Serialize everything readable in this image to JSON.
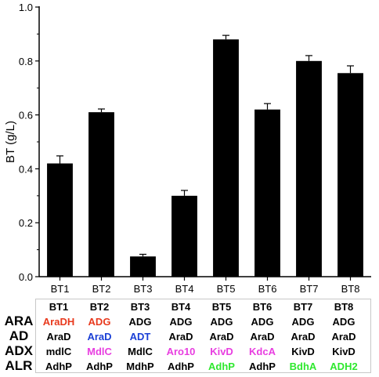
{
  "chart_data": {
    "type": "bar",
    "title": "",
    "xlabel": "",
    "ylabel": "BT (g/L)",
    "ylim": [
      0.0,
      1.0
    ],
    "yticks": [
      "0.0",
      "0.2",
      "0.4",
      "0.6",
      "0.8",
      "1.0"
    ],
    "categories": [
      "BT1",
      "BT2",
      "BT3",
      "BT4",
      "BT5",
      "BT6",
      "BT7",
      "BT8"
    ],
    "values": [
      0.42,
      0.61,
      0.075,
      0.3,
      0.88,
      0.62,
      0.8,
      0.755
    ],
    "errors": [
      0.028,
      0.012,
      0.008,
      0.02,
      0.015,
      0.022,
      0.02,
      0.027
    ],
    "bar_color": "#000000",
    "grid": false
  },
  "gene_table": {
    "row_labels": [
      "ARA",
      "AD",
      "ADX",
      "ALR"
    ],
    "headers": [
      "BT1",
      "BT2",
      "BT3",
      "BT4",
      "BT5",
      "BT6",
      "BT7",
      "BT8"
    ],
    "rows": [
      [
        {
          "text": "AraDH",
          "color": "#e8391d"
        },
        {
          "text": "ADG",
          "color": "#e8391d"
        },
        {
          "text": "ADG",
          "color": "#000000"
        },
        {
          "text": "ADG",
          "color": "#000000"
        },
        {
          "text": "ADG",
          "color": "#000000"
        },
        {
          "text": "ADG",
          "color": "#000000"
        },
        {
          "text": "ADG",
          "color": "#000000"
        },
        {
          "text": "ADG",
          "color": "#000000"
        }
      ],
      [
        {
          "text": "AraD",
          "color": "#000000"
        },
        {
          "text": "AraD",
          "color": "#1a3fd6"
        },
        {
          "text": "ADT",
          "color": "#1a3fd6"
        },
        {
          "text": "AraD",
          "color": "#000000"
        },
        {
          "text": "AraD",
          "color": "#000000"
        },
        {
          "text": "AraD",
          "color": "#000000"
        },
        {
          "text": "AraD",
          "color": "#000000"
        },
        {
          "text": "AraD",
          "color": "#000000"
        }
      ],
      [
        {
          "text": "mdlC",
          "color": "#000000"
        },
        {
          "text": "MdlC",
          "color": "#e83ee0"
        },
        {
          "text": "MdlC",
          "color": "#000000"
        },
        {
          "text": "Aro10",
          "color": "#e83ee0"
        },
        {
          "text": "KivD",
          "color": "#e83ee0"
        },
        {
          "text": "KdcA",
          "color": "#e83ee0"
        },
        {
          "text": "KivD",
          "color": "#000000"
        },
        {
          "text": "KivD",
          "color": "#000000"
        }
      ],
      [
        {
          "text": "AdhP",
          "color": "#000000"
        },
        {
          "text": "AdhP",
          "color": "#000000"
        },
        {
          "text": "MdhP",
          "color": "#000000"
        },
        {
          "text": "AdhP",
          "color": "#000000"
        },
        {
          "text": "AdhP",
          "color": "#2ee82e"
        },
        {
          "text": "AdhP",
          "color": "#000000"
        },
        {
          "text": "BdhA",
          "color": "#2ee82e"
        },
        {
          "text": "ADH2",
          "color": "#2ee82e"
        }
      ]
    ]
  }
}
